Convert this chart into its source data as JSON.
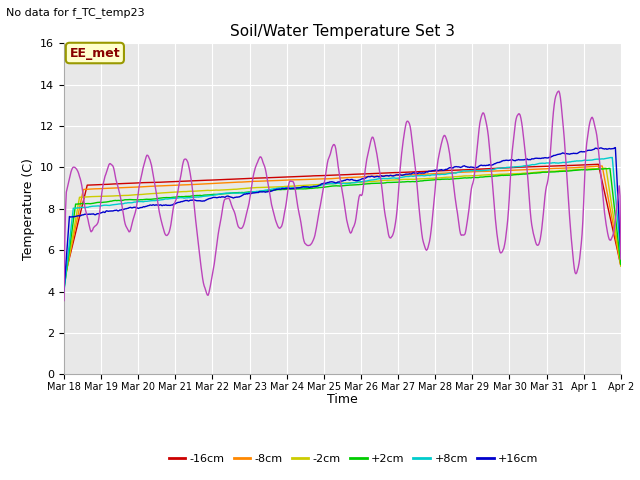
{
  "title": "Soil/Water Temperature Set 3",
  "xlabel": "Time",
  "ylabel": "Temperature (C)",
  "note": "No data for f_TC_temp23",
  "legend_label": "EE_met",
  "ylim": [
    0,
    16
  ],
  "yticks": [
    0,
    2,
    4,
    6,
    8,
    10,
    12,
    14,
    16
  ],
  "xtick_labels": [
    "Mar 18",
    "Mar 19",
    "Mar 20",
    "Mar 21",
    "Mar 22",
    "Mar 23",
    "Mar 24",
    "Mar 25",
    "Mar 26",
    "Mar 27",
    "Mar 28",
    "Mar 29",
    "Mar 30",
    "Mar 31",
    "Apr 1",
    "Apr 2"
  ],
  "series_colors": {
    "-16cm": "#cc0000",
    "-8cm": "#ff8800",
    "-2cm": "#cccc00",
    "+2cm": "#00cc00",
    "+8cm": "#00cccc",
    "+16cm": "#0000cc",
    "+64cm": "#bb44bb"
  },
  "bg_color": "#e8e8e8",
  "grid_color": "#ffffff",
  "ee_met_color": "#880000",
  "ee_met_bg": "#ffffcc",
  "ee_met_edge": "#999900"
}
